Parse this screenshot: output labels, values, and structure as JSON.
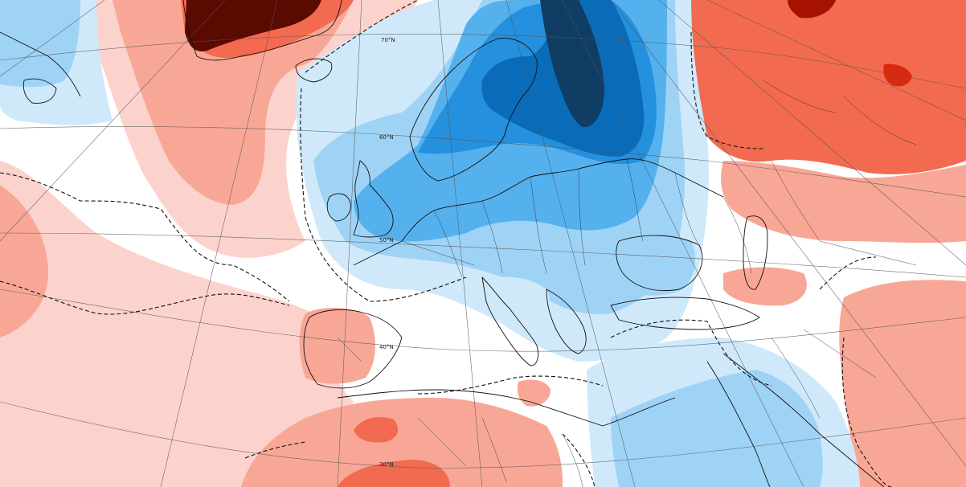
{
  "map": {
    "lat_labels": [
      "70°N",
      "60°N",
      "50°N",
      "40°N",
      "30°N"
    ],
    "palette": {
      "warm_1": "#fcd3cc",
      "warm_2": "#f8a796",
      "warm_3": "#f26a4f",
      "warm_4": "#d92a10",
      "warm_5": "#a51300",
      "warm_6": "#5a0a00",
      "cool_1": "#cfe9fb",
      "cool_2": "#9fd3f6",
      "cool_3": "#55b1ee",
      "cool_4": "#2590dd",
      "cool_5": "#0a6cb9",
      "cool_6": "#0f3d63",
      "neutral": "#ffffff"
    }
  }
}
